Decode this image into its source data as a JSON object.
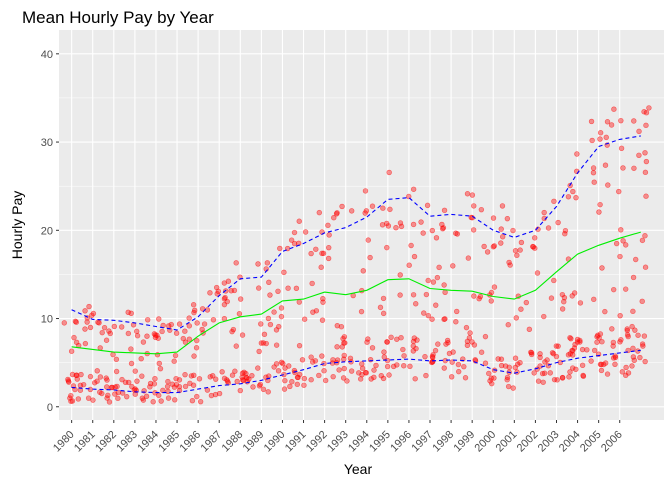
{
  "chart_data": {
    "type": "scatter",
    "title": "Mean Hourly Pay by Year",
    "xlabel": "Year",
    "ylabel": "Hourly Pay",
    "xlim": [
      1979.4,
      2008.1
    ],
    "ylim": [
      -1.5,
      42.7
    ],
    "grid": true,
    "legend": "none",
    "x_ticks": [
      "1980",
      "1981",
      "1982",
      "1983",
      "1984",
      "1985",
      "1986",
      "1987",
      "1988",
      "1989",
      "1990",
      "1991",
      "1992",
      "1993",
      "1994",
      "1995",
      "1996",
      "1997",
      "1998",
      "1999",
      "2000",
      "2001",
      "2002",
      "2003",
      "2004",
      "2005",
      "2006"
    ],
    "y_ticks": [
      0,
      10,
      20,
      30,
      40
    ],
    "colors": {
      "panel": "#ebebeb",
      "grid_major": "#ffffff",
      "points": "#ff0000",
      "bands": "#0000ff",
      "mean": "#00ee00"
    },
    "series": [
      {
        "name": "",
        "style": "dashed",
        "color": "#0000ff",
        "x": [
          1980,
          1981,
          1982,
          1983,
          1984,
          1985,
          1986,
          1987,
          1988,
          1989,
          1990,
          1991,
          1992,
          1993,
          1994,
          1995,
          1996,
          1997,
          1998,
          1999,
          2000,
          2001,
          2002,
          2003,
          2004,
          2005,
          2006,
          2007
        ],
        "y": [
          11.0,
          9.9,
          9.8,
          9.5,
          9.1,
          8.7,
          10.2,
          12.6,
          14.5,
          14.7,
          17.6,
          18.5,
          19.7,
          20.3,
          21.5,
          23.5,
          23.7,
          21.6,
          21.8,
          21.6,
          20.0,
          19.2,
          20.0,
          22.7,
          26.5,
          29.5,
          30.3,
          30.7
        ]
      },
      {
        "name": "",
        "style": "solid",
        "color": "#00ee00",
        "x": [
          1980,
          1981,
          1982,
          1983,
          1984,
          1985,
          1986,
          1987,
          1988,
          1989,
          1990,
          1991,
          1992,
          1993,
          1994,
          1995,
          1996,
          1997,
          1998,
          1999,
          2000,
          2001,
          2002,
          2003,
          2004,
          2005,
          2006,
          2007
        ],
        "y": [
          6.8,
          6.5,
          6.2,
          6.1,
          6.0,
          6.2,
          8.0,
          9.5,
          10.2,
          10.5,
          12.0,
          12.2,
          13.0,
          12.7,
          13.2,
          14.4,
          14.5,
          13.4,
          13.2,
          13.1,
          12.5,
          12.2,
          13.2,
          15.3,
          17.3,
          18.3,
          19.1,
          19.8
        ]
      },
      {
        "name": "",
        "style": "dashed",
        "color": "#0000ff",
        "x": [
          1980,
          1981,
          1982,
          1983,
          1984,
          1985,
          1986,
          1987,
          1988,
          1989,
          1990,
          1991,
          1992,
          1993,
          1994,
          1995,
          1996,
          1997,
          1998,
          1999,
          2000,
          2001,
          2002,
          2003,
          2004,
          2005,
          2006,
          2007
        ],
        "y": [
          2.2,
          2.0,
          1.9,
          1.7,
          1.6,
          1.6,
          2.0,
          2.4,
          2.6,
          3.0,
          3.6,
          4.2,
          4.9,
          5.1,
          5.2,
          5.3,
          5.4,
          5.2,
          5.3,
          5.2,
          4.2,
          3.8,
          4.3,
          5.0,
          5.5,
          5.8,
          6.1,
          6.4
        ]
      }
    ]
  }
}
